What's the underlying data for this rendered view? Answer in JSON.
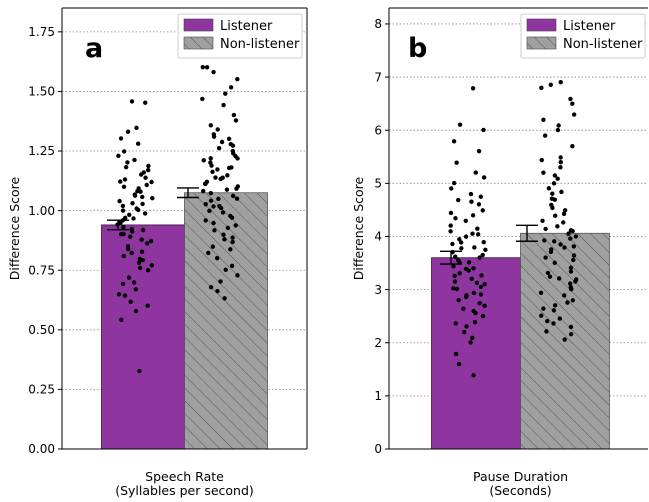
{
  "chart_data": [
    {
      "type": "bar",
      "panel_label": "a",
      "categories": [
        "Speech Rate"
      ],
      "xlabel_lines": [
        "Speech Rate",
        "(Syllables per second)"
      ],
      "ylabel": "Difference Score",
      "ylim": [
        0,
        1.85
      ],
      "yticks": [
        "0.00",
        "0.25",
        "0.50",
        "0.75",
        "1.00",
        "1.25",
        "1.50",
        "1.75"
      ],
      "grid": "horizontal dotted",
      "legend_position": "top-right",
      "series": [
        {
          "name": "Listener",
          "values": [
            0.94
          ],
          "error": [
            0.02
          ],
          "color": "#8e35a0",
          "hatch": false
        },
        {
          "name": "Non-listener",
          "values": [
            1.075
          ],
          "error": [
            0.02
          ],
          "color": "#a0a0a0",
          "hatch": true
        }
      ],
      "points": [
        [
          0.33,
          0.58,
          0.6,
          0.62,
          0.64,
          0.67,
          0.7,
          0.72,
          0.75,
          0.77,
          0.78,
          0.8,
          0.82,
          0.84,
          0.85,
          0.87,
          0.88,
          0.89,
          0.9,
          0.91,
          0.92,
          0.93,
          0.94,
          0.95,
          0.96,
          0.97,
          0.98,
          0.99,
          1.0,
          1.01,
          1.02,
          1.03,
          1.04,
          1.05,
          1.06,
          1.07,
          1.08,
          1.09,
          1.1,
          1.11,
          1.12,
          1.13,
          1.14,
          1.15,
          1.17,
          1.19,
          1.21,
          1.23,
          1.25,
          1.28,
          1.3,
          1.33,
          1.35,
          1.45,
          1.46,
          0.54,
          0.65,
          0.69,
          0.81,
          0.86,
          0.92,
          0.97,
          1.03,
          1.08,
          1.16,
          1.2,
          0.76,
          0.79,
          0.83,
          0.9,
          0.95,
          1.0,
          1.06,
          1.12,
          1.18
        ],
        [
          0.63,
          0.66,
          0.7,
          0.73,
          0.77,
          0.8,
          0.82,
          0.85,
          0.87,
          0.89,
          0.9,
          0.92,
          0.94,
          0.96,
          0.97,
          0.99,
          1.0,
          1.01,
          1.02,
          1.03,
          1.04,
          1.05,
          1.06,
          1.07,
          1.08,
          1.09,
          1.1,
          1.11,
          1.12,
          1.13,
          1.14,
          1.15,
          1.16,
          1.17,
          1.18,
          1.19,
          1.2,
          1.21,
          1.22,
          1.23,
          1.24,
          1.25,
          1.27,
          1.29,
          1.3,
          1.32,
          1.34,
          1.36,
          1.4,
          1.44,
          1.47,
          1.49,
          1.52,
          1.55,
          1.58,
          1.6,
          1.6,
          0.68,
          0.75,
          0.84,
          0.93,
          0.98,
          1.05,
          1.11,
          1.18,
          1.26,
          1.31,
          0.88,
          0.95,
          1.02,
          1.09,
          1.14,
          1.22,
          1.28,
          1.38
        ]
      ]
    },
    {
      "type": "bar",
      "panel_label": "b",
      "categories": [
        "Pause Duration"
      ],
      "xlabel_lines": [
        "Pause Duration",
        "(Seconds)"
      ],
      "ylabel": "Difference Score",
      "ylim": [
        0,
        8.3
      ],
      "yticks": [
        "0",
        "1",
        "2",
        "3",
        "4",
        "5",
        "6",
        "7",
        "8"
      ],
      "grid": "horizontal dotted",
      "legend_position": "top-right",
      "series": [
        {
          "name": "Listener",
          "values": [
            3.6
          ],
          "error": [
            0.12
          ],
          "color": "#8e35a0",
          "hatch": false
        },
        {
          "name": "Non-listener",
          "values": [
            4.06
          ],
          "error": [
            0.15
          ],
          "color": "#a0a0a0",
          "hatch": true
        }
      ],
      "points": [
        [
          1.4,
          1.6,
          1.8,
          2.0,
          2.2,
          2.3,
          2.4,
          2.5,
          2.6,
          2.7,
          2.75,
          2.8,
          2.85,
          2.9,
          2.95,
          3.0,
          3.05,
          3.1,
          3.15,
          3.2,
          3.25,
          3.3,
          3.35,
          3.4,
          3.45,
          3.5,
          3.55,
          3.6,
          3.65,
          3.7,
          3.75,
          3.8,
          3.85,
          3.9,
          3.95,
          4.0,
          4.05,
          4.1,
          4.2,
          4.3,
          4.4,
          4.5,
          4.6,
          4.7,
          4.8,
          4.9,
          5.0,
          5.2,
          5.4,
          5.6,
          5.8,
          6.0,
          6.1,
          6.8,
          2.1,
          2.55,
          2.9,
          3.12,
          3.38,
          3.62,
          3.88,
          4.15,
          4.45,
          4.75,
          5.1,
          2.35,
          2.65,
          3.02,
          3.28,
          3.52,
          3.78,
          4.05,
          4.35,
          4.65
        ],
        [
          2.05,
          2.2,
          2.3,
          2.4,
          2.5,
          2.6,
          2.7,
          2.8,
          2.9,
          3.0,
          3.1,
          3.15,
          3.2,
          3.25,
          3.3,
          3.4,
          3.5,
          3.6,
          3.7,
          3.75,
          3.8,
          3.85,
          3.9,
          3.95,
          4.0,
          4.05,
          4.1,
          4.15,
          4.2,
          4.3,
          4.4,
          4.5,
          4.6,
          4.7,
          4.8,
          4.9,
          5.0,
          5.1,
          5.2,
          5.3,
          5.4,
          5.5,
          5.7,
          5.9,
          6.0,
          6.1,
          6.2,
          6.3,
          6.5,
          6.6,
          6.8,
          6.85,
          6.9,
          2.15,
          2.45,
          2.75,
          3.05,
          3.35,
          3.65,
          3.92,
          4.25,
          4.55,
          4.85,
          5.15,
          5.45,
          2.35,
          2.65,
          2.95,
          3.22,
          3.55,
          3.82,
          4.12,
          4.42,
          4.72
        ]
      ]
    }
  ]
}
